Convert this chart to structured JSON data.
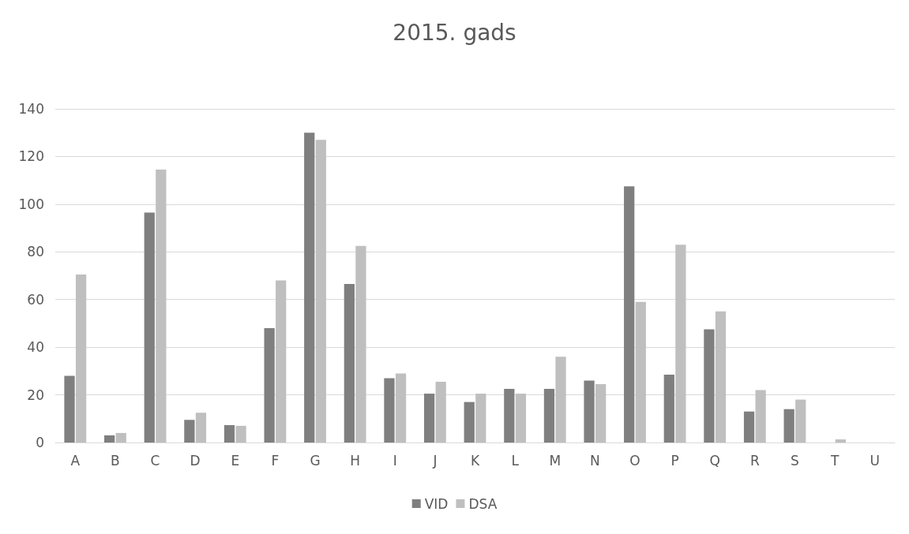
{
  "chart_data": {
    "type": "bar",
    "title": "2015. gads",
    "categories": [
      "A",
      "B",
      "C",
      "D",
      "E",
      "F",
      "G",
      "H",
      "I",
      "J",
      "K",
      "L",
      "M",
      "N",
      "O",
      "P",
      "Q",
      "R",
      "S",
      "T",
      "U"
    ],
    "series": [
      {
        "name": "VID",
        "color": "#7f7f7f",
        "values": [
          28,
          3,
          96.5,
          9.5,
          7.3,
          48,
          130,
          66.5,
          27,
          20.5,
          17,
          22.5,
          22.5,
          26,
          107.5,
          28.5,
          47.5,
          13,
          14,
          0,
          0
        ]
      },
      {
        "name": "DSA",
        "color": "#bfbfbf",
        "values": [
          70.5,
          4,
          114.5,
          12.5,
          7,
          68,
          127,
          82.5,
          29,
          25.5,
          20.5,
          20.5,
          36,
          24.5,
          59,
          83,
          55,
          22,
          18,
          1.3,
          0
        ]
      }
    ],
    "ylim": [
      0,
      140
    ],
    "yticks": [
      0,
      20,
      40,
      60,
      80,
      100,
      120,
      140
    ],
    "grid": "y",
    "legend": "bottom"
  }
}
